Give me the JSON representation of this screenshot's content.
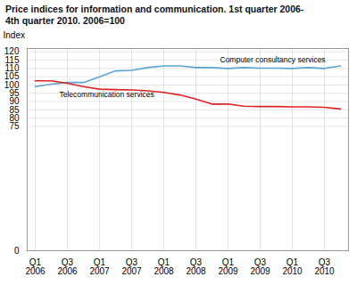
{
  "chart_data": {
    "type": "line",
    "title": "Price indices for information and communication. 1st quarter 2006-\n4th quarter 2010. 2006=100",
    "y_label": "Index",
    "categories": [
      "Q1\n2006",
      null,
      "Q3\n2006",
      null,
      "Q1\n2007",
      null,
      "Q3\n2007",
      null,
      "Q1\n2008",
      null,
      "Q3\n2008",
      null,
      "Q1\n2009",
      null,
      "Q3\n2009",
      null,
      "Q1\n2010",
      null,
      "Q3\n2010",
      null
    ],
    "series": [
      {
        "name": "Computer consultancy services",
        "color": "#5ba3d0",
        "values": [
          99.0,
          100.5,
          101.5,
          101.5,
          105.0,
          108.5,
          108.8,
          110.5,
          111.5,
          111.5,
          110.5,
          110.5,
          110.0,
          110.5,
          110.2,
          110.2,
          110.0,
          110.5,
          110.0,
          111.5
        ]
      },
      {
        "name": "Telecommunication services",
        "color": "#dd2222",
        "values": [
          102.5,
          102.5,
          101.0,
          99.0,
          97.5,
          97.2,
          97.0,
          96.5,
          95.5,
          94.0,
          91.5,
          88.5,
          88.5,
          87.2,
          87.0,
          87.0,
          86.8,
          86.8,
          86.5,
          85.5
        ]
      }
    ],
    "annotations": [
      {
        "text": "Computer consultancy services",
        "x": 11.5,
        "y": 113.5
      },
      {
        "text": "Telecommunication services",
        "x": 1.5,
        "y": 92.5
      }
    ],
    "ylim": [
      0,
      122
    ],
    "yticks": [
      0,
      75,
      80,
      85,
      90,
      95,
      100,
      105,
      110,
      115,
      120
    ],
    "grid": true
  }
}
